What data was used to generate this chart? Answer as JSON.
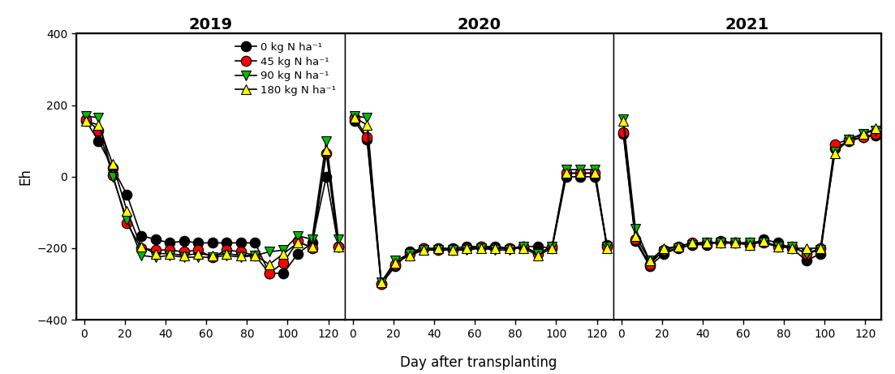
{
  "years": [
    "2019",
    "2020",
    "2021"
  ],
  "series": [
    {
      "label": "0 kg N ha⁻¹",
      "color": "#000000",
      "marker": "o",
      "marker_facecolor": "#000000",
      "marker_edgecolor": "#000000",
      "data": {
        "2019": {
          "x": [
            1,
            7,
            14,
            21,
            28,
            35,
            42,
            49,
            56,
            63,
            70,
            77,
            84,
            91,
            98,
            105,
            112,
            119,
            125
          ],
          "y": [
            155,
            100,
            25,
            -50,
            -165,
            -175,
            -185,
            -180,
            -185,
            -185,
            -185,
            -185,
            -185,
            -270,
            -270,
            -215,
            -185,
            0,
            -195
          ]
        },
        "2020": {
          "x": [
            1,
            7,
            14,
            21,
            28,
            35,
            42,
            49,
            56,
            63,
            70,
            77,
            84,
            91,
            98,
            105,
            112,
            119,
            125
          ],
          "y": [
            155,
            105,
            -300,
            -250,
            -210,
            -200,
            -200,
            -200,
            -195,
            -195,
            -195,
            -200,
            -195,
            -195,
            -200,
            0,
            0,
            0,
            -190
          ]
        },
        "2021": {
          "x": [
            1,
            7,
            14,
            21,
            28,
            35,
            42,
            49,
            56,
            63,
            70,
            77,
            84,
            91,
            98,
            105,
            112,
            119,
            125
          ],
          "y": [
            120,
            -180,
            -250,
            -215,
            -200,
            -190,
            -190,
            -180,
            -185,
            -190,
            -175,
            -185,
            -200,
            -235,
            -215,
            80,
            100,
            110,
            115
          ]
        }
      }
    },
    {
      "label": "45 kg N ha⁻¹",
      "color": "#ff0000",
      "marker": "o",
      "marker_facecolor": "#ff0000",
      "marker_edgecolor": "#000000",
      "data": {
        "2019": {
          "x": [
            1,
            7,
            14,
            21,
            28,
            35,
            42,
            49,
            56,
            63,
            70,
            77,
            84,
            91,
            98,
            105,
            112,
            119,
            125
          ],
          "y": [
            160,
            130,
            5,
            -130,
            -200,
            -205,
            -205,
            -210,
            -205,
            -225,
            -205,
            -210,
            -220,
            -270,
            -240,
            -180,
            -200,
            65,
            -195
          ]
        },
        "2020": {
          "x": [
            1,
            7,
            14,
            21,
            28,
            35,
            42,
            49,
            56,
            63,
            70,
            77,
            84,
            91,
            98,
            105,
            112,
            119,
            125
          ],
          "y": [
            165,
            110,
            -300,
            -245,
            -215,
            -200,
            -205,
            -205,
            -200,
            -195,
            -200,
            -200,
            -195,
            -215,
            -195,
            10,
            10,
            10,
            -195
          ]
        },
        "2021": {
          "x": [
            1,
            7,
            14,
            21,
            28,
            35,
            42,
            49,
            56,
            63,
            70,
            77,
            84,
            91,
            98,
            105,
            112,
            119,
            125
          ],
          "y": [
            125,
            -175,
            -245,
            -205,
            -195,
            -185,
            -185,
            -185,
            -185,
            -185,
            -185,
            -195,
            -195,
            -215,
            -200,
            90,
            105,
            110,
            120
          ]
        }
      }
    },
    {
      "label": "90 kg N ha⁻¹",
      "color": "#00bb00",
      "marker": "v",
      "marker_facecolor": "#00bb00",
      "marker_edgecolor": "#000000",
      "data": {
        "2019": {
          "x": [
            1,
            7,
            14,
            21,
            28,
            35,
            42,
            49,
            56,
            63,
            70,
            77,
            84,
            91,
            98,
            105,
            112,
            119,
            125
          ],
          "y": [
            170,
            165,
            0,
            -120,
            -220,
            -225,
            -220,
            -225,
            -225,
            -225,
            -220,
            -225,
            -220,
            -210,
            -205,
            -165,
            -175,
            100,
            -175
          ]
        },
        "2020": {
          "x": [
            1,
            7,
            14,
            21,
            28,
            35,
            42,
            49,
            56,
            63,
            70,
            77,
            84,
            91,
            98,
            105,
            112,
            119,
            125
          ],
          "y": [
            170,
            165,
            -295,
            -235,
            -215,
            -205,
            -205,
            -205,
            -205,
            -200,
            -205,
            -205,
            -195,
            -215,
            -195,
            20,
            20,
            20,
            -195
          ]
        },
        "2021": {
          "x": [
            1,
            7,
            14,
            21,
            28,
            35,
            42,
            49,
            56,
            63,
            70,
            77,
            84,
            91,
            98,
            105,
            112,
            119,
            125
          ],
          "y": [
            160,
            -145,
            -235,
            -210,
            -200,
            -190,
            -185,
            -185,
            -185,
            -185,
            -185,
            -195,
            -195,
            -215,
            -205,
            70,
            105,
            120,
            130
          ]
        }
      }
    },
    {
      "label": "180 kg N ha⁻¹",
      "color": "#ffff00",
      "marker": "^",
      "marker_facecolor": "#ffff00",
      "marker_edgecolor": "#000000",
      "data": {
        "2019": {
          "x": [
            1,
            7,
            14,
            21,
            28,
            35,
            42,
            49,
            56,
            63,
            70,
            77,
            84,
            91,
            98,
            105,
            112,
            119,
            125
          ],
          "y": [
            155,
            145,
            35,
            -95,
            -195,
            -215,
            -215,
            -220,
            -215,
            -220,
            -215,
            -220,
            -220,
            -245,
            -215,
            -185,
            -195,
            75,
            -195
          ]
        },
        "2020": {
          "x": [
            1,
            7,
            14,
            21,
            28,
            35,
            42,
            49,
            56,
            63,
            70,
            77,
            84,
            91,
            98,
            105,
            112,
            119,
            125
          ],
          "y": [
            165,
            145,
            -295,
            -240,
            -220,
            -205,
            -200,
            -205,
            -200,
            -200,
            -200,
            -200,
            -200,
            -220,
            -200,
            10,
            10,
            10,
            -200
          ]
        },
        "2021": {
          "x": [
            1,
            7,
            14,
            21,
            28,
            35,
            42,
            49,
            56,
            63,
            70,
            77,
            84,
            91,
            98,
            105,
            112,
            119,
            125
          ],
          "y": [
            155,
            -165,
            -235,
            -200,
            -195,
            -185,
            -185,
            -185,
            -185,
            -190,
            -180,
            -195,
            -200,
            -200,
            -200,
            65,
            105,
            120,
            135
          ]
        }
      }
    }
  ],
  "ylabel": "Eh",
  "xlabel": "Day after transplanting",
  "ylim": [
    -400,
    400
  ],
  "yticks": [
    -400,
    -200,
    0,
    200,
    400
  ],
  "xticks": [
    0,
    20,
    40,
    60,
    80,
    100,
    120
  ],
  "xlim": [
    -4,
    128
  ],
  "background_color": "#ffffff",
  "outer_border_color": "#000000",
  "title_fontsize": 14,
  "axis_fontsize": 12,
  "tick_fontsize": 10,
  "legend_fontsize": 9.5,
  "marker_size": 9,
  "line_width": 1.2
}
